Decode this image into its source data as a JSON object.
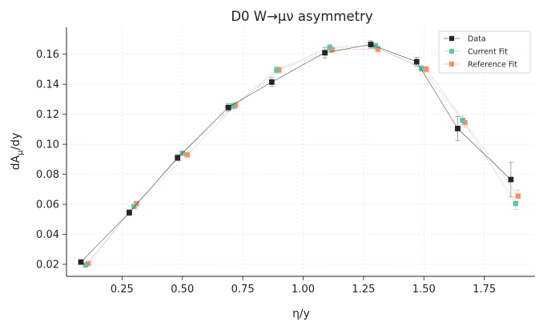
{
  "chart_data": {
    "type": "line",
    "title": "D0 W→μν asymmetry",
    "xlabel": "η/y",
    "ylabel_main": "dA",
    "ylabel_sub": "μ",
    "ylabel_tail": "/dy",
    "xlim": [
      0.02,
      1.96
    ],
    "ylim": [
      0.012,
      0.178
    ],
    "x_ticks": [
      "0.25",
      "0.50",
      "0.75",
      "1.00",
      "1.25",
      "1.50",
      "1.75"
    ],
    "y_ticks": [
      "0.02",
      "0.04",
      "0.06",
      "0.08",
      "0.10",
      "0.12",
      "0.14",
      "0.16"
    ],
    "grid": true,
    "legend_position": "top-right",
    "series": [
      {
        "name": "Data",
        "color": "#262626",
        "marker": "square",
        "x": [
          0.08,
          0.28,
          0.48,
          0.69,
          0.87,
          1.09,
          1.28,
          1.47,
          1.64,
          1.86
        ],
        "y": [
          0.0215,
          0.0545,
          0.091,
          0.1245,
          0.1415,
          0.161,
          0.1665,
          0.155,
          0.1105,
          0.0765
        ],
        "yerr": [
          0.0015,
          0.002,
          0.002,
          0.0025,
          0.003,
          0.0035,
          0.0025,
          0.003,
          0.008,
          0.0115
        ]
      },
      {
        "name": "Current Fit",
        "color": "#66c2a5",
        "marker": "square",
        "x": [
          0.1,
          0.3,
          0.5,
          0.71,
          0.89,
          1.11,
          1.3,
          1.49,
          1.66,
          1.88
        ],
        "y": [
          0.0195,
          0.0585,
          0.094,
          0.1255,
          0.1495,
          0.1645,
          0.1655,
          0.1505,
          0.116,
          0.0605
        ],
        "yerr": [
          0.001,
          0.0015,
          0.0015,
          0.002,
          0.002,
          0.002,
          0.002,
          0.002,
          0.003,
          0.004
        ]
      },
      {
        "name": "Reference Fit",
        "color": "#fc8d62",
        "marker": "square",
        "x": [
          0.11,
          0.31,
          0.52,
          0.72,
          0.9,
          1.12,
          1.31,
          1.51,
          1.67,
          1.89
        ],
        "y": [
          0.0205,
          0.0605,
          0.093,
          0.126,
          0.1495,
          0.163,
          0.1635,
          0.15,
          0.1145,
          0.0655
        ],
        "yerr": [
          0.001,
          0.0015,
          0.0015,
          0.002,
          0.002,
          0.002,
          0.002,
          0.002,
          0.003,
          0.004
        ]
      }
    ]
  }
}
